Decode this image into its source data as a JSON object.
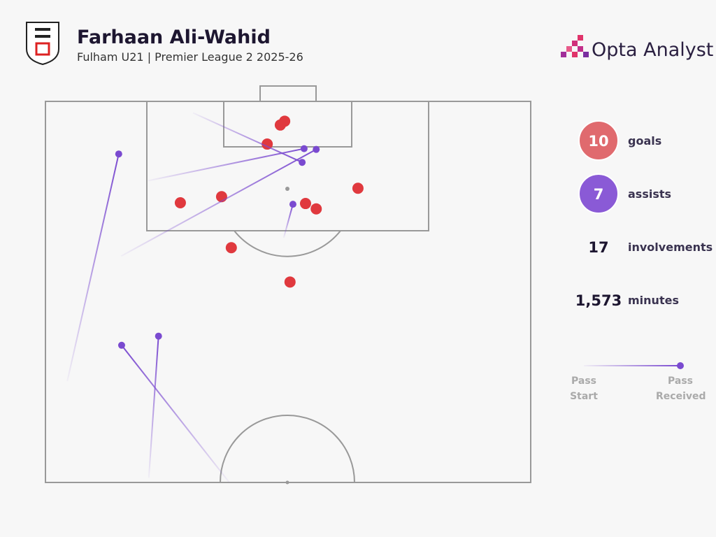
{
  "chart_data": {
    "type": "scatter",
    "title": "Farhaan Ali-Wahid",
    "subtitle": "Fulham U21 | Premier League 2 2025-26",
    "brand": "Opta Analyst",
    "xlim": [
      0,
      100
    ],
    "ylim": [
      50,
      100
    ],
    "series": [
      {
        "name": "goals",
        "color": "#e0393e",
        "x": [
          49.3,
          48.4,
          45.7,
          36.3,
          27.8,
          53.6,
          55.8,
          64.4,
          38.3,
          50.4
        ],
        "y": [
          97.4,
          96.9,
          94.4,
          87.5,
          86.7,
          86.6,
          85.9,
          88.6,
          80.8,
          76.3
        ]
      },
      {
        "name": "assists",
        "color": "#7a4ad0",
        "x_start": [
          30.4,
          21.2,
          15.6,
          49.1,
          4.5,
          21.3,
          37.9
        ],
        "y_start": [
          98.5,
          89.6,
          79.7,
          82.1,
          63.3,
          50.6,
          50.0
        ],
        "x": [
          52.9,
          53.3,
          55.8,
          51.0,
          15.1,
          23.3,
          15.7
        ],
        "y": [
          92.0,
          93.8,
          93.7,
          86.5,
          93.1,
          69.2,
          68.0
        ]
      }
    ],
    "stats": [
      {
        "value": 10,
        "name": "goals",
        "color": "#e06a6e"
      },
      {
        "value": 7,
        "name": "assists",
        "color": "#8a5ad6"
      },
      {
        "value": 17,
        "name": "involvements"
      },
      {
        "value": 1573,
        "value_label": "1,573",
        "name": "minutes"
      }
    ],
    "legend_labels": [
      "Pass Start",
      "Pass Received"
    ]
  }
}
